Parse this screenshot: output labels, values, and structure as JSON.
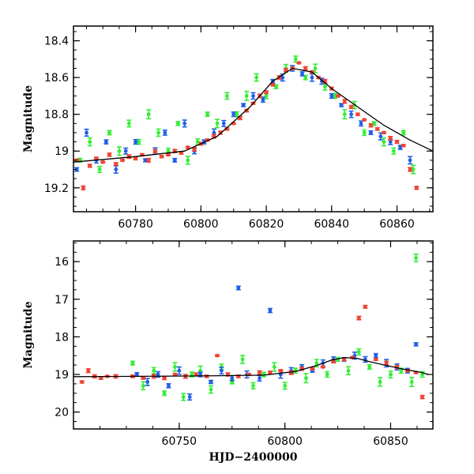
{
  "chart_data": [
    {
      "type": "scatter",
      "title": "",
      "xlabel": "",
      "ylabel": "Magnitude",
      "xlim": [
        60761,
        60871
      ],
      "ylim": [
        19.33,
        18.32
      ],
      "y_inverted": true,
      "xticks": [
        60780,
        60800,
        60820,
        60840,
        60860
      ],
      "yticks": [
        18.4,
        18.6,
        18.8,
        19,
        19.2
      ],
      "ytick_labels": [
        "18.4",
        "18.6",
        "18.8",
        "19",
        "19.2"
      ],
      "grid": false,
      "legend": "none",
      "model_curve": {
        "color": "#000000",
        "x": [
          60761,
          60780,
          60795,
          60805,
          60815,
          60822,
          60828,
          60834,
          60840,
          60848,
          60856,
          60864,
          60871
        ],
        "y": [
          19.06,
          19.03,
          19.0,
          18.92,
          18.76,
          18.62,
          18.55,
          18.57,
          18.66,
          18.76,
          18.86,
          18.94,
          19.0
        ]
      },
      "series": [
        {
          "color": "#33ee33",
          "marker": "open-circle",
          "x": [
            60763,
            60766,
            60769,
            60772,
            60775,
            60778,
            60781,
            60784,
            60787,
            60790,
            60793,
            60796,
            60799,
            60802,
            60805,
            60808,
            60811,
            60814,
            60817,
            60820,
            60823,
            60826,
            60829,
            60832,
            60835,
            60838,
            60841,
            60844,
            60847,
            60850,
            60853,
            60856,
            60859,
            60862,
            60865
          ],
          "y": [
            19.05,
            18.95,
            19.1,
            18.9,
            19.0,
            18.85,
            18.95,
            18.8,
            18.9,
            19.0,
            18.85,
            19.05,
            18.95,
            18.8,
            18.85,
            18.7,
            18.8,
            18.7,
            18.6,
            18.7,
            18.65,
            18.55,
            18.5,
            18.6,
            18.55,
            18.65,
            18.7,
            18.8,
            18.75,
            18.9,
            18.85,
            18.95,
            19.0,
            18.9,
            19.1
          ]
        },
        {
          "color": "#1f5fe6",
          "marker": "filled-circle",
          "x": [
            60762,
            60765,
            60768,
            60771,
            60774,
            60777,
            60780,
            60783,
            60786,
            60789,
            60792,
            60795,
            60798,
            60801,
            60804,
            60807,
            60810,
            60813,
            60816,
            60819,
            60822,
            60825,
            60828,
            60831,
            60834,
            60837,
            60840,
            60843,
            60846,
            60849,
            60852,
            60855,
            60858,
            60861,
            60864
          ],
          "y": [
            19.1,
            18.9,
            19.05,
            18.95,
            19.1,
            19.0,
            18.95,
            19.05,
            19.0,
            18.9,
            19.05,
            18.85,
            19.0,
            18.95,
            18.9,
            18.85,
            18.8,
            18.75,
            18.7,
            18.72,
            18.62,
            18.6,
            18.55,
            18.58,
            18.6,
            18.62,
            18.7,
            18.75,
            18.8,
            18.85,
            18.9,
            18.92,
            18.95,
            18.98,
            19.05
          ]
        },
        {
          "color": "#ee4433",
          "marker": "filled-circle",
          "x": [
            60762,
            60764,
            60766,
            60768,
            60770,
            60772,
            60774,
            60776,
            60778,
            60780,
            60782,
            60784,
            60786,
            60788,
            60790,
            60792,
            60794,
            60796,
            60798,
            60800,
            60802,
            60804,
            60806,
            60808,
            60810,
            60812,
            60814,
            60816,
            60818,
            60820,
            60822,
            60824,
            60826,
            60828,
            60830,
            60832,
            60834,
            60836,
            60838,
            60840,
            60842,
            60844,
            60846,
            60848,
            60850,
            60852,
            60854,
            60856,
            60858,
            60860,
            60862,
            60864,
            60866
          ],
          "y": [
            19.05,
            19.2,
            19.08,
            19.04,
            19.06,
            19.02,
            19.07,
            19.05,
            19.03,
            19.04,
            19.02,
            19.05,
            19.0,
            19.03,
            19.02,
            19.0,
            19.01,
            18.98,
            18.99,
            18.96,
            18.94,
            18.92,
            18.9,
            18.88,
            18.85,
            18.82,
            18.78,
            18.74,
            18.7,
            18.68,
            18.64,
            18.6,
            18.56,
            18.55,
            18.52,
            18.55,
            18.57,
            18.6,
            18.62,
            18.66,
            18.7,
            18.73,
            18.76,
            18.8,
            18.83,
            18.86,
            18.88,
            18.9,
            18.93,
            18.95,
            18.97,
            19.1,
            19.2
          ]
        }
      ]
    },
    {
      "type": "scatter",
      "title": "",
      "xlabel": "HJD−2400000",
      "ylabel": "Magnitude",
      "xlim": [
        60700,
        60870
      ],
      "ylim": [
        20.45,
        15.45
      ],
      "y_inverted": true,
      "xticks": [
        60750,
        60800,
        60850
      ],
      "yticks": [
        16,
        17,
        18,
        19,
        20
      ],
      "ytick_labels": [
        "16",
        "17",
        "18",
        "19",
        "20"
      ],
      "grid": false,
      "legend": "none",
      "model_curve": {
        "color": "#000000",
        "x": [
          60700,
          60730,
          60760,
          60790,
          60805,
          60815,
          60822,
          60828,
          60834,
          60840,
          60848,
          60856,
          60864,
          60868
        ],
        "y": [
          19.06,
          19.05,
          19.04,
          19.02,
          18.92,
          18.76,
          18.62,
          18.55,
          18.57,
          18.66,
          18.76,
          18.86,
          18.94,
          19.0
        ]
      },
      "series": [
        {
          "color": "#33ee33",
          "marker": "open-circle",
          "x": [
            60728,
            60733,
            60738,
            60743,
            60748,
            60752,
            60756,
            60760,
            60765,
            60770,
            60775,
            60780,
            60785,
            60790,
            60795,
            60800,
            60805,
            60810,
            60815,
            60820,
            60825,
            60830,
            60835,
            60840,
            60845,
            60850,
            60855,
            60860,
            60862,
            60865
          ],
          "y": [
            18.7,
            19.3,
            18.9,
            19.5,
            18.8,
            19.6,
            19.0,
            18.9,
            19.4,
            18.8,
            19.2,
            18.6,
            19.3,
            19.0,
            18.8,
            19.3,
            18.9,
            19.1,
            18.7,
            19.0,
            18.6,
            18.9,
            18.4,
            18.8,
            19.2,
            19.0,
            18.9,
            19.2,
            15.9,
            19.0
          ]
        },
        {
          "color": "#1f5fe6",
          "marker": "filled-circle",
          "x": [
            60730,
            60735,
            60740,
            60745,
            60750,
            60755,
            60760,
            60765,
            60770,
            60775,
            60778,
            60782,
            60788,
            60793,
            60798,
            60803,
            60808,
            60813,
            60818,
            60823,
            60828,
            60833,
            60838,
            60843,
            60848,
            60853,
            60858,
            60862
          ],
          "y": [
            19.0,
            19.2,
            19.0,
            19.3,
            18.9,
            19.6,
            19.0,
            19.2,
            18.9,
            19.1,
            16.7,
            19.0,
            19.1,
            17.3,
            19.0,
            18.9,
            18.8,
            18.9,
            18.7,
            18.6,
            18.6,
            18.5,
            18.6,
            18.5,
            18.7,
            18.8,
            18.9,
            18.2
          ]
        },
        {
          "color": "#ee4433",
          "marker": "filled-circle",
          "x": [
            60704,
            60707,
            60710,
            60713,
            60716,
            60720,
            60728,
            60733,
            60738,
            60743,
            60748,
            60753,
            60758,
            60763,
            60768,
            60773,
            60778,
            60783,
            60788,
            60793,
            60798,
            60803,
            60808,
            60813,
            60818,
            60823,
            60828,
            60832,
            60835,
            60838,
            60843,
            60848,
            60853,
            60858,
            60862,
            60865
          ],
          "y": [
            19.2,
            18.9,
            19.05,
            19.1,
            19.05,
            19.05,
            19.05,
            19.1,
            19.05,
            19.1,
            19.0,
            19.05,
            19.0,
            19.05,
            18.5,
            19.0,
            19.05,
            19.0,
            18.95,
            18.95,
            18.9,
            18.95,
            18.85,
            18.85,
            18.8,
            18.65,
            18.6,
            18.55,
            17.5,
            17.2,
            18.6,
            18.7,
            18.8,
            18.9,
            18.95,
            19.6
          ]
        }
      ]
    }
  ]
}
